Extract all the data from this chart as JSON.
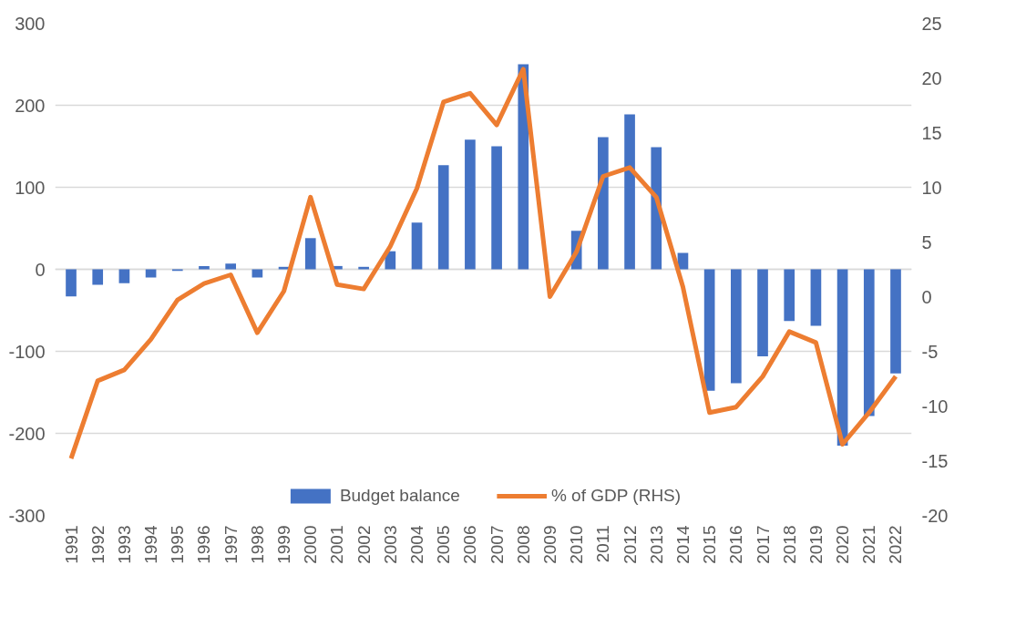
{
  "chart_data": {
    "type": "bar",
    "categories": [
      "1991",
      "1992",
      "1993",
      "1994",
      "1995",
      "1996",
      "1997",
      "1998",
      "1999",
      "2000",
      "2001",
      "2002",
      "2003",
      "2004",
      "2005",
      "2006",
      "2007",
      "2008",
      "2009",
      "2010",
      "2011",
      "2012",
      "2013",
      "2014",
      "2015",
      "2016",
      "2017",
      "2018",
      "2019",
      "2020",
      "2021",
      "2022"
    ],
    "series": [
      {
        "name": "Budget balance",
        "color": "#4472c4",
        "values": [
          -33,
          -19,
          -17,
          -10,
          -2,
          4,
          7,
          -10,
          3,
          38,
          4,
          3,
          22,
          57,
          127,
          158,
          150,
          250,
          null,
          47,
          161,
          189,
          149,
          20,
          -148,
          -139,
          -106,
          -63,
          -69,
          -215,
          -179,
          -127
        ]
      },
      {
        "name": "% of GDP (RHS)",
        "type": "line",
        "axis": "y2",
        "color": "#ed7d31",
        "values": [
          -14.8,
          -7.7,
          -6.7,
          -3.9,
          -0.3,
          1.2,
          2.0,
          -3.3,
          0.5,
          9.1,
          1.1,
          0.7,
          4.6,
          9.9,
          17.8,
          18.6,
          15.7,
          20.8,
          0.0,
          4.1,
          11.0,
          11.8,
          9.1,
          0.9,
          -10.6,
          -10.1,
          -7.3,
          -3.2,
          -4.2,
          -13.5,
          -10.6,
          -7.3
        ]
      }
    ],
    "ylim": [
      -300,
      300
    ],
    "yticks": [
      -300,
      -200,
      -100,
      0,
      100,
      200,
      300
    ],
    "y2lim": [
      -20,
      25
    ],
    "y2ticks": [
      -20,
      -15,
      -10,
      -5,
      0,
      5,
      10,
      15,
      20,
      25
    ],
    "grid": "y",
    "legend": "bottom",
    "marker": "none",
    "line_style": "solid"
  }
}
